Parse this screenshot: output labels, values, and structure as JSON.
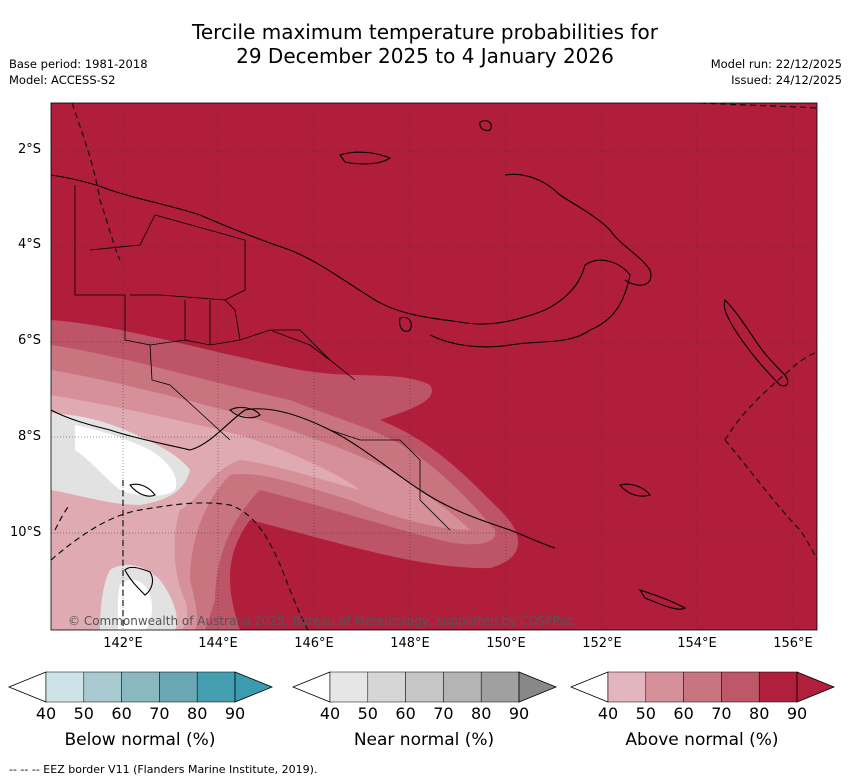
{
  "header": {
    "title_line1": "Tercile maximum temperature probabilities for",
    "title_line2": "29 December 2025 to 4 January 2026",
    "base_period": "Base period: 1981-2018",
    "model": "Model: ACCESS-S2",
    "model_run": "Model run: 22/12/2025",
    "issued": "Issued: 24/12/2025"
  },
  "map": {
    "lat_labels": [
      "2°S",
      "4°S",
      "6°S",
      "8°S",
      "10°S"
    ],
    "lon_labels": [
      "142°E",
      "144°E",
      "146°E",
      "148°E",
      "150°E",
      "152°E",
      "154°E",
      "156°E"
    ],
    "copyright": "© Commonwealth of Australia 2025, Bureau of Meteorology, supported by COSPPac",
    "region": "Papua New Guinea"
  },
  "legends": [
    {
      "title": "Below normal (%)",
      "ticks": [
        "40",
        "50",
        "60",
        "70",
        "80",
        "90"
      ],
      "colors": [
        "#cde3e8",
        "#a8c9cf",
        "#89b8c1",
        "#68a7b3",
        "#449fb0",
        "#2d95a8"
      ],
      "end_color": "#3b9bb0"
    },
    {
      "title": "Near normal (%)",
      "ticks": [
        "40",
        "50",
        "60",
        "70",
        "80",
        "90"
      ],
      "colors": [
        "#e6e6e6",
        "#d6d6d6",
        "#c6c6c6",
        "#b4b4b4",
        "#a0a0a0",
        "#888888"
      ],
      "end_color": "#888888"
    },
    {
      "title": "Above normal (%)",
      "ticks": [
        "40",
        "50",
        "60",
        "70",
        "80",
        "90"
      ],
      "colors": [
        "#e3b6bd",
        "#d6909a",
        "#c97580",
        "#be5868",
        "#b0203c",
        "#b0203c"
      ],
      "end_color": "#b0203c"
    }
  ],
  "footnote": "--  --  -- EEZ border V11 (Flanders Marine Institute, 2019)."
}
